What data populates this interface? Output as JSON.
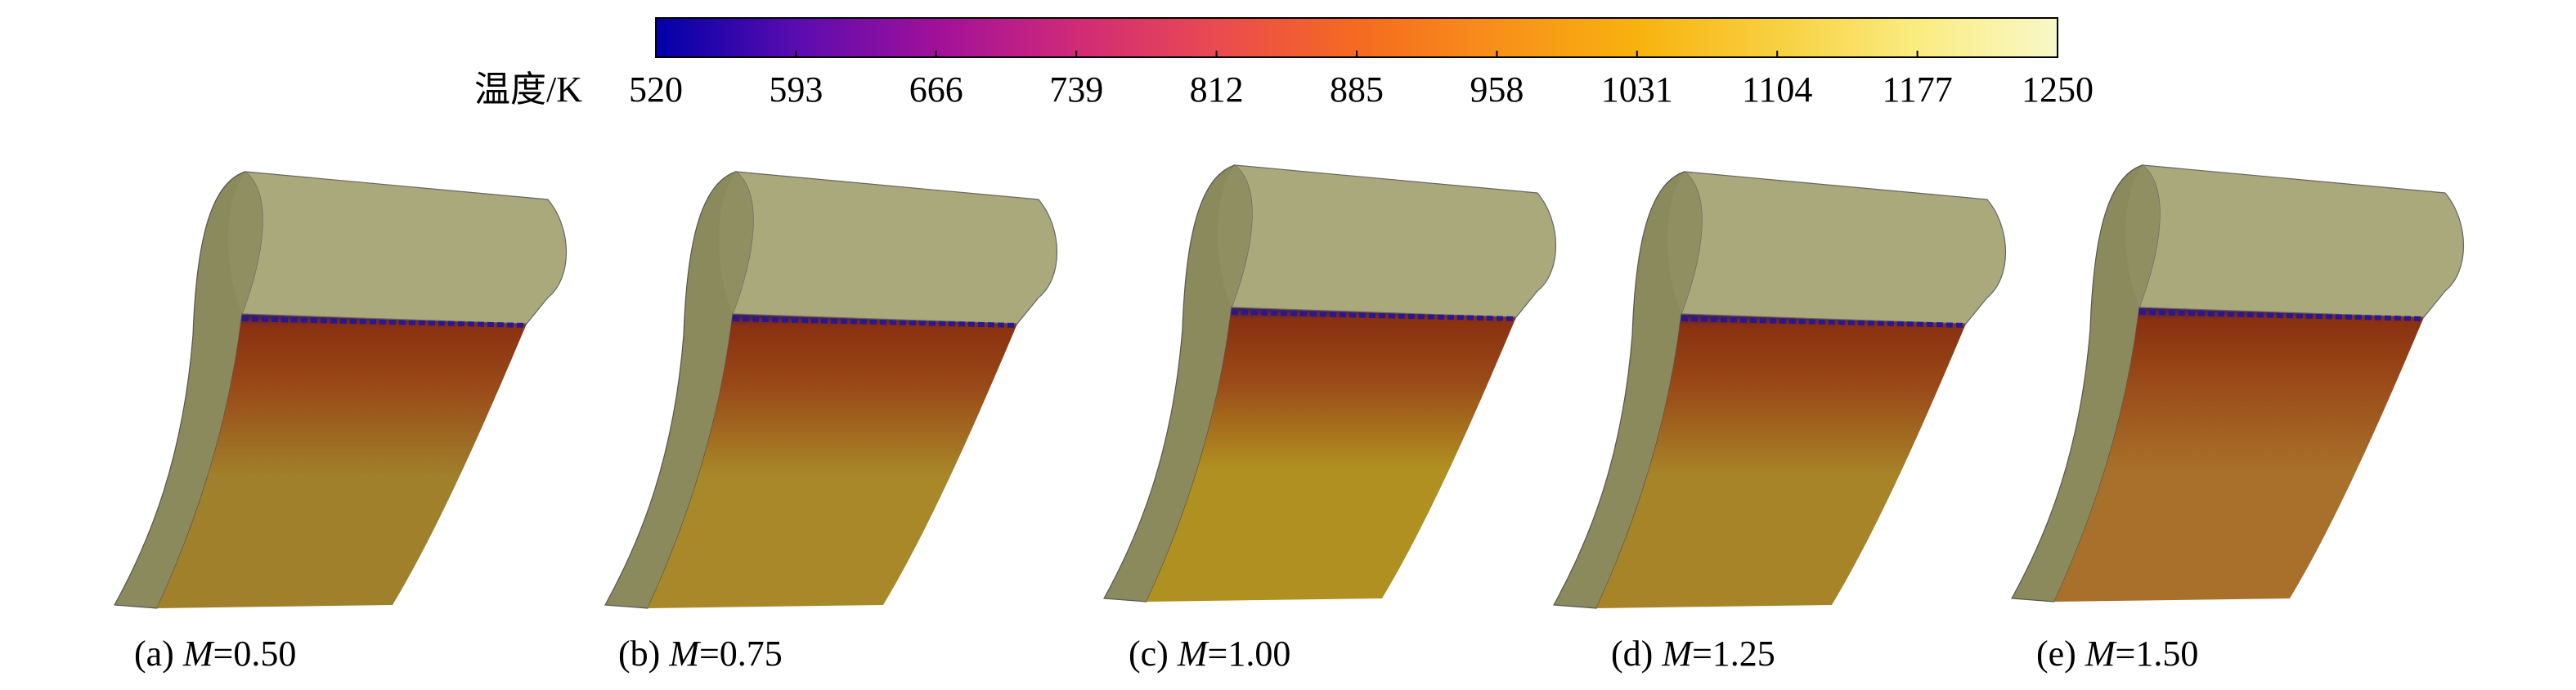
{
  "colorbar": {
    "label": "温度/K",
    "range": [
      520,
      1250
    ],
    "ticks": [
      520,
      593,
      666,
      739,
      812,
      885,
      958,
      1031,
      1104,
      1177,
      1250
    ],
    "colors": [
      "#0000a8",
      "#5a0cb0",
      "#a0109a",
      "#d02a78",
      "#ea4a50",
      "#f56a20",
      "#f8901a",
      "#f8b20e",
      "#f8d040",
      "#fbec80",
      "#f8f8c8"
    ]
  },
  "panels": [
    {
      "label": "(a)",
      "symbol": "M",
      "value": "=0.50",
      "surface_color": "#a0802a"
    },
    {
      "label": "(b)",
      "symbol": "M",
      "value": "=0.75",
      "surface_color": "#a88828"
    },
    {
      "label": "(c)",
      "symbol": "M",
      "value": "=1.00",
      "surface_color": "#b09020"
    },
    {
      "label": "(d)",
      "symbol": "M",
      "value": "=1.25",
      "surface_color": "#a88428"
    },
    {
      "label": "(e)",
      "symbol": "M",
      "value": "=1.50",
      "surface_color": "#a8702a"
    }
  ]
}
